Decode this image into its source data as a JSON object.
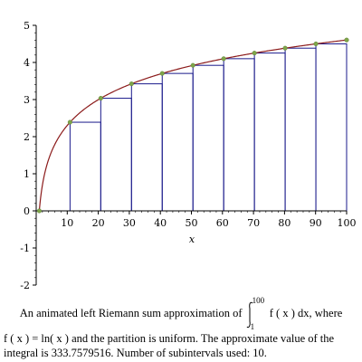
{
  "chart_data": {
    "type": "bar",
    "function": "ln(x)",
    "x": [
      1,
      10.9,
      20.8,
      30.7,
      40.6,
      50.5,
      60.4,
      70.3,
      80.2,
      90.1,
      100
    ],
    "sample_points_y": [
      0,
      2.389,
      3.035,
      3.424,
      3.704,
      3.922,
      4.101,
      4.253,
      4.385,
      4.501,
      4.605
    ],
    "bar_left_x": [
      1,
      10.9,
      20.8,
      30.7,
      40.6,
      50.5,
      60.4,
      70.3,
      80.2,
      90.1
    ],
    "bar_heights": [
      0,
      2.389,
      3.035,
      3.424,
      3.704,
      3.922,
      4.101,
      4.253,
      4.385,
      4.501
    ],
    "bar_width": 9.9,
    "xlabel": "x",
    "ylabel": "",
    "xlim": [
      0,
      100
    ],
    "ylim": [
      -2,
      5
    ],
    "x_ticks": [
      10,
      20,
      30,
      40,
      50,
      60,
      70,
      80,
      90,
      100
    ],
    "y_ticks": [
      -2,
      -1,
      0,
      1,
      2,
      3,
      4,
      5
    ],
    "grid": false,
    "colors": {
      "curve": "#8b1a1a",
      "bars": "#1a1a8b",
      "points": "#7fa64a"
    }
  },
  "caption": {
    "line1_before": "An animated left Riemann sum approximation of",
    "integral_upper": "100",
    "integral_lower": "1",
    "integrand": "f ( x )  dx, where",
    "line2": "f ( x ) = ln( x )  and the partition is uniform.  The approximate value of the integral is 333.7579516.  Number of subintervals used: 10."
  }
}
